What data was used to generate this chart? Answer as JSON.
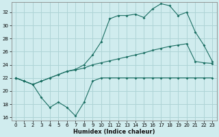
{
  "bg_color": "#d0ecee",
  "grid_color": "#aed4d6",
  "line_color": "#1a6e62",
  "xlabel": "Humidex (Indice chaleur)",
  "xlim": [
    -0.5,
    23.5
  ],
  "ylim": [
    15.5,
    33.5
  ],
  "yticks": [
    16,
    18,
    20,
    22,
    24,
    26,
    28,
    30,
    32
  ],
  "xticks": [
    0,
    1,
    2,
    3,
    4,
    5,
    6,
    7,
    8,
    9,
    10,
    11,
    12,
    13,
    14,
    15,
    16,
    17,
    18,
    19,
    20,
    21,
    22,
    23
  ],
  "series1_x": [
    0,
    1,
    2,
    3,
    4,
    5,
    6,
    7,
    8,
    9,
    10,
    11,
    12,
    13,
    14,
    15,
    16,
    17,
    18,
    19,
    20,
    21,
    22,
    23
  ],
  "series1_y": [
    22.0,
    21.5,
    21.0,
    19.0,
    17.5,
    18.3,
    17.5,
    16.2,
    18.3,
    21.5,
    22.0,
    22.0,
    22.0,
    22.0,
    22.0,
    22.0,
    22.0,
    22.0,
    22.0,
    22.0,
    22.0,
    22.0,
    22.0,
    22.0
  ],
  "series2_x": [
    0,
    1,
    2,
    3,
    4,
    5,
    6,
    7,
    8,
    9,
    10,
    11,
    12,
    13,
    14,
    15,
    16,
    17,
    18,
    19,
    20,
    21,
    22,
    23
  ],
  "series2_y": [
    22.0,
    21.5,
    21.0,
    21.5,
    22.0,
    22.5,
    23.0,
    23.3,
    24.0,
    25.5,
    27.5,
    31.0,
    31.5,
    31.5,
    31.7,
    31.2,
    32.5,
    33.3,
    33.0,
    31.5,
    32.0,
    29.0,
    27.0,
    24.5
  ],
  "series3_x": [
    0,
    1,
    2,
    3,
    4,
    5,
    6,
    7,
    8,
    9,
    10,
    11,
    12,
    13,
    14,
    15,
    16,
    17,
    18,
    19,
    20,
    21,
    22,
    23
  ],
  "series3_y": [
    22.0,
    21.5,
    21.0,
    21.5,
    22.0,
    22.5,
    23.0,
    23.2,
    23.5,
    24.0,
    24.3,
    24.6,
    24.9,
    25.2,
    25.5,
    25.8,
    26.2,
    26.5,
    26.8,
    27.0,
    27.2,
    24.5,
    24.3,
    24.2
  ]
}
